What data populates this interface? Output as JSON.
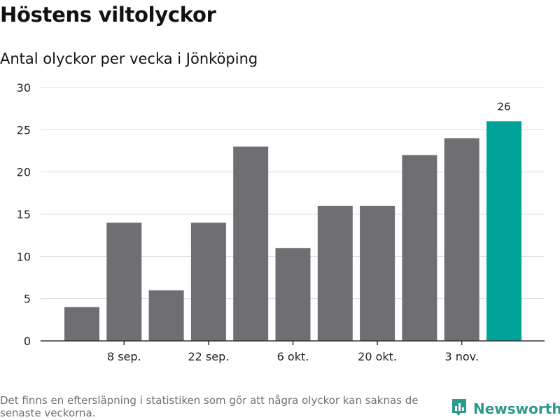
{
  "title": "Höstens viltolyckor",
  "subtitle": "Antal olyckor per vecka i Jönköping",
  "footnote": "Det finns en eftersläpning i statistiken som gör att några olyckor kan saknas de senaste veckorna.",
  "brand": {
    "name": "Newsworthy",
    "icon": "bar-chart-logo-icon",
    "color": "#2c9a8e"
  },
  "chart_data": {
    "type": "bar",
    "x": [
      "",
      "8 sep.",
      "",
      "22 sep.",
      "",
      "6 okt.",
      "",
      "20 okt.",
      "",
      "3 nov.",
      ""
    ],
    "x_tick_labels": [
      "8 sep.",
      "22 sep.",
      "6 okt.",
      "20 okt.",
      "3 nov."
    ],
    "values": [
      4,
      14,
      6,
      14,
      23,
      11,
      16,
      16,
      22,
      24,
      26
    ],
    "highlight_index": 10,
    "data_labels": [
      {
        "index": 10,
        "text": "26"
      }
    ],
    "ylim": [
      0,
      30
    ],
    "y_ticks": [
      0,
      5,
      10,
      15,
      20,
      25,
      30
    ],
    "grid": true,
    "colors": {
      "bar": "#6f6e73",
      "highlight": "#00a398",
      "grid": "#dcdcdc",
      "axis": "#333333"
    }
  }
}
